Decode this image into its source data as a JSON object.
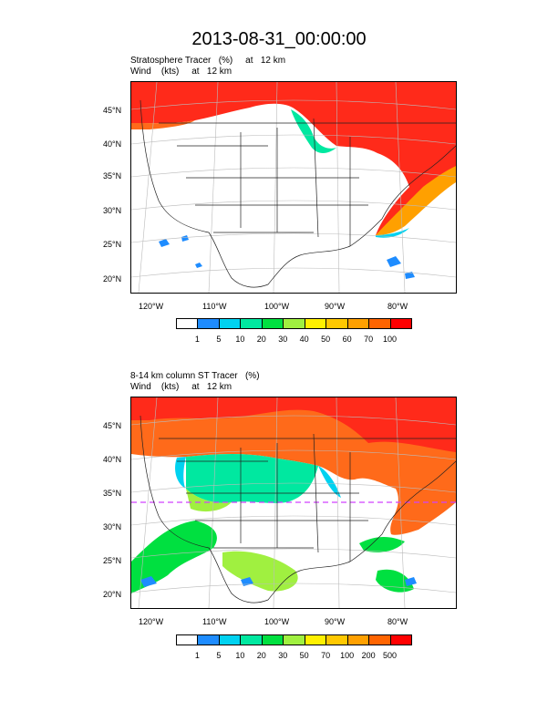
{
  "title": "2013-08-31_00:00:00",
  "panels": [
    {
      "title_line1": "Stratosphere Tracer   (%)     at   12 km",
      "title_line2": "Wind    (kts)     at   12 km",
      "lat_labels": [
        "45°N",
        "40°N",
        "35°N",
        "30°N",
        "25°N",
        "20°N"
      ],
      "lon_labels": [
        "120°W",
        "110°W",
        "100°W",
        "90°W",
        "80°W"
      ],
      "colorbar_labels": [
        "1",
        "5",
        "10",
        "20",
        "30",
        "40",
        "50",
        "60",
        "70",
        "100"
      ]
    },
    {
      "title_line1": "8-14 km column ST Tracer   (%)",
      "title_line2": "Wind    (kts)     at   12 km",
      "lat_labels": [
        "45°N",
        "40°N",
        "35°N",
        "30°N",
        "25°N",
        "20°N"
      ],
      "lon_labels": [
        "120°W",
        "110°W",
        "100°W",
        "90°W",
        "80°W"
      ],
      "colorbar_labels": [
        "1",
        "5",
        "10",
        "20",
        "30",
        "50",
        "70",
        "100",
        "200",
        "500"
      ]
    }
  ],
  "colorbar_colors": [
    "#ffffff",
    "#1e8cff",
    "#00d2f0",
    "#00e8a0",
    "#00e040",
    "#a0f040",
    "#fff000",
    "#ffc800",
    "#ffa000",
    "#ff6400",
    "#ff0000"
  ],
  "map_colors": {
    "high": "#ff2a1a",
    "mid": "#ff6a1a",
    "land_line": "#222222"
  }
}
